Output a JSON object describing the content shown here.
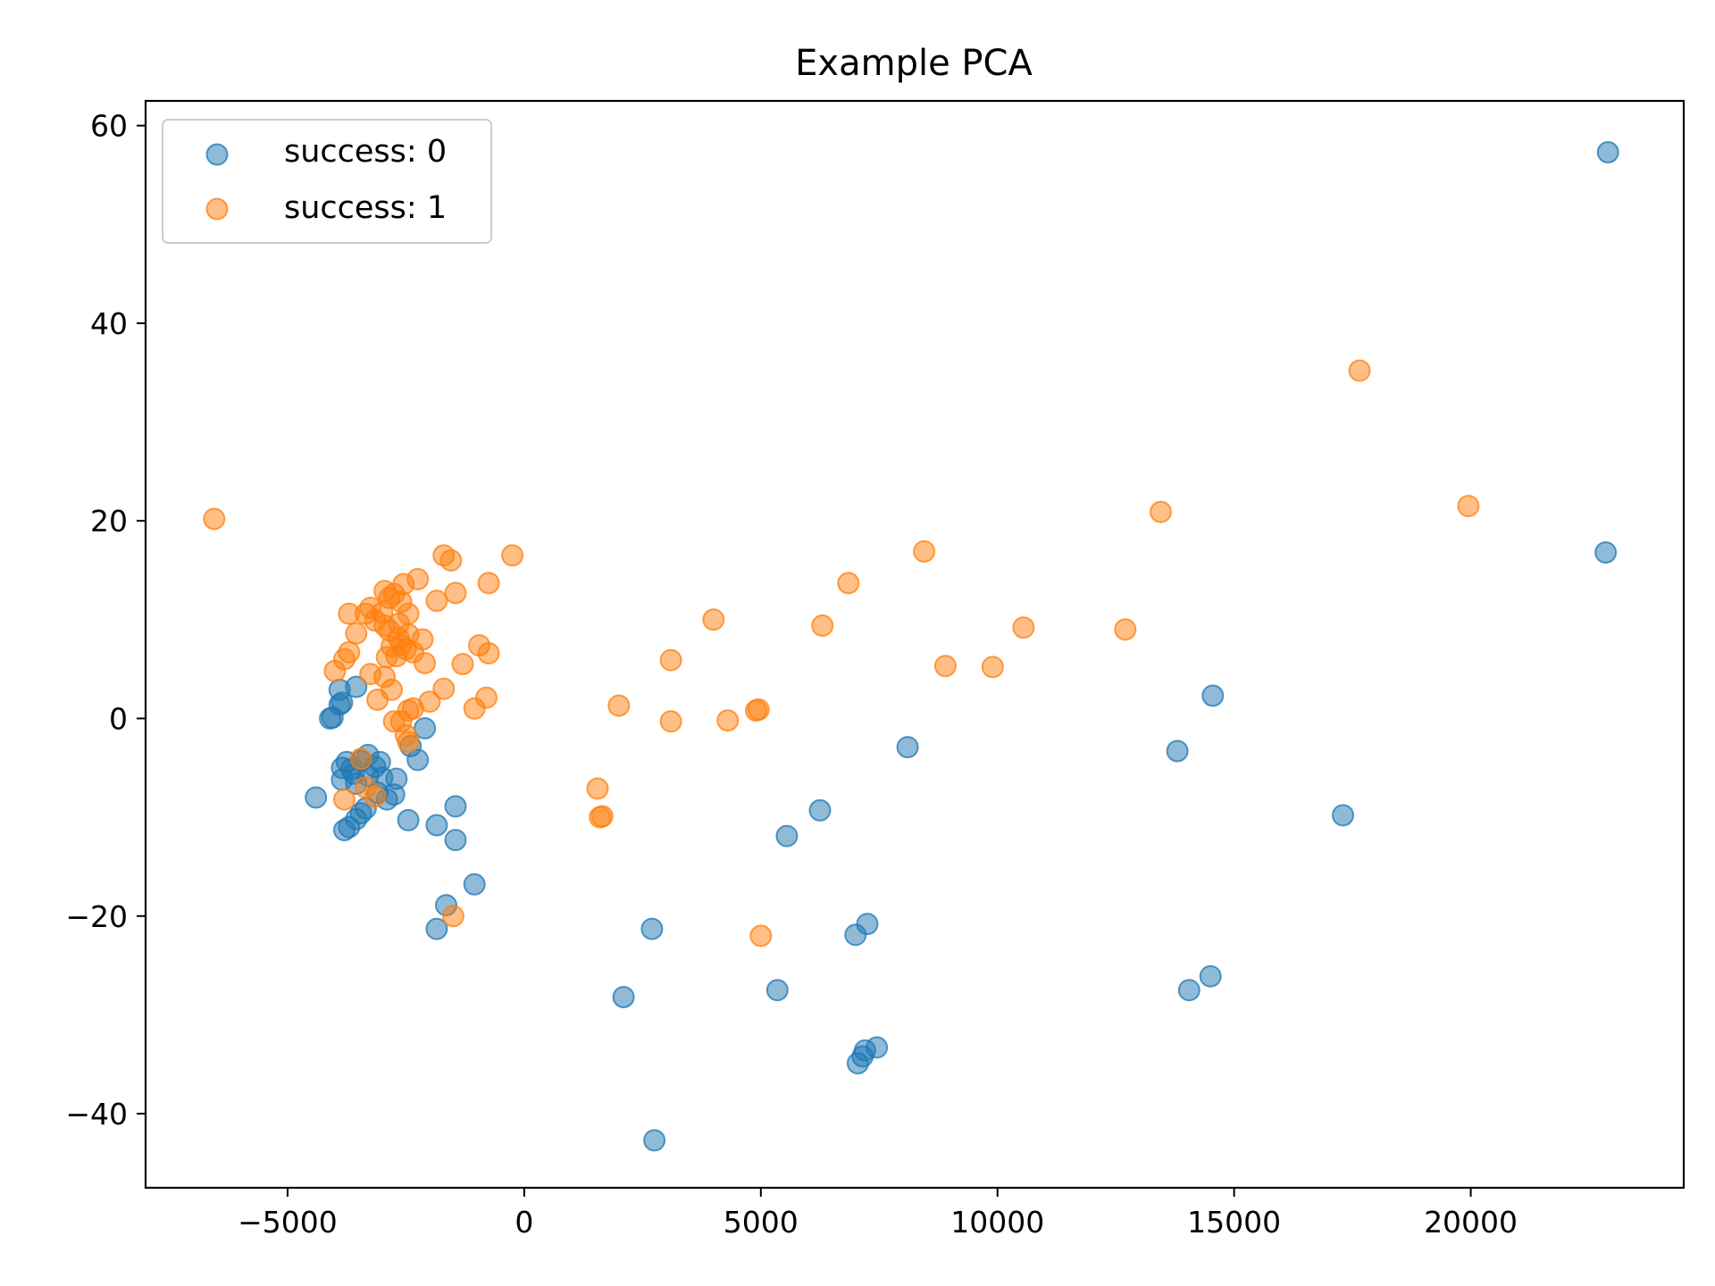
{
  "chart_data": {
    "type": "scatter",
    "title": "Example PCA",
    "xlabel": "",
    "ylabel": "",
    "xlim": [
      -8000,
      24500
    ],
    "ylim": [
      -47.5,
      62.5
    ],
    "x_ticks": [
      -5000,
      0,
      5000,
      10000,
      15000,
      20000
    ],
    "x_tick_labels": [
      "−5000",
      "0",
      "5000",
      "10000",
      "15000",
      "20000"
    ],
    "y_ticks": [
      -40,
      -20,
      0,
      20,
      40,
      60
    ],
    "y_tick_labels": [
      "−40",
      "−20",
      "0",
      "20",
      "40",
      "60"
    ],
    "grid": false,
    "legend_position": "upper-left",
    "marker_alpha": 0.5,
    "series": [
      {
        "name": "success: 0",
        "color": "#1f77b4",
        "points": [
          [
            22900,
            57.3
          ],
          [
            22850,
            16.8
          ],
          [
            14550,
            2.3
          ],
          [
            13800,
            -3.3
          ],
          [
            17300,
            -9.8
          ],
          [
            14050,
            -27.5
          ],
          [
            14500,
            -26.1
          ],
          [
            8100,
            -2.9
          ],
          [
            7250,
            -20.8
          ],
          [
            7000,
            -21.9
          ],
          [
            7450,
            -33.3
          ],
          [
            7200,
            -33.6
          ],
          [
            7150,
            -34.2
          ],
          [
            7050,
            -34.9
          ],
          [
            6250,
            -9.3
          ],
          [
            5550,
            -11.9
          ],
          [
            5350,
            -27.5
          ],
          [
            2700,
            -21.3
          ],
          [
            2100,
            -28.2
          ],
          [
            2750,
            -42.7
          ],
          [
            -4100,
            0.0
          ],
          [
            -4050,
            0.1
          ],
          [
            -3900,
            1.4
          ],
          [
            -3850,
            1.6
          ],
          [
            -3900,
            2.9
          ],
          [
            -3550,
            3.2
          ],
          [
            -2100,
            -1.0
          ],
          [
            -2400,
            -2.8
          ],
          [
            -2250,
            -4.2
          ],
          [
            -3850,
            -5.0
          ],
          [
            -3750,
            -4.4
          ],
          [
            -3600,
            -5.6
          ],
          [
            -3450,
            -4.3
          ],
          [
            -3300,
            -3.7
          ],
          [
            -3150,
            -4.9
          ],
          [
            -3050,
            -4.4
          ],
          [
            -3850,
            -6.2
          ],
          [
            -3550,
            -6.6
          ],
          [
            -3300,
            -5.8
          ],
          [
            -3000,
            -6.0
          ],
          [
            -2700,
            -6.1
          ],
          [
            -3100,
            -7.5
          ],
          [
            -2900,
            -8.2
          ],
          [
            -2750,
            -7.7
          ],
          [
            -3350,
            -9.1
          ],
          [
            -3450,
            -9.6
          ],
          [
            -3550,
            -10.2
          ],
          [
            -3700,
            -11.0
          ],
          [
            -3800,
            -11.3
          ],
          [
            -4400,
            -8.0
          ],
          [
            -2450,
            -10.3
          ],
          [
            -1850,
            -10.8
          ],
          [
            -1450,
            -8.9
          ],
          [
            -1450,
            -12.3
          ],
          [
            -1050,
            -16.8
          ],
          [
            -1650,
            -18.9
          ],
          [
            -1850,
            -21.3
          ],
          [
            -3650,
            -5.1
          ]
        ]
      },
      {
        "name": "success: 1",
        "color": "#ff7f0e",
        "points": [
          [
            -6550,
            20.2
          ],
          [
            17650,
            35.2
          ],
          [
            19950,
            21.5
          ],
          [
            13450,
            20.9
          ],
          [
            12700,
            9.0
          ],
          [
            10550,
            9.2
          ],
          [
            9900,
            5.2
          ],
          [
            8900,
            5.3
          ],
          [
            8450,
            16.9
          ],
          [
            6850,
            13.7
          ],
          [
            6300,
            9.4
          ],
          [
            4000,
            10.0
          ],
          [
            3100,
            5.9
          ],
          [
            3100,
            -0.3
          ],
          [
            4300,
            -0.2
          ],
          [
            4900,
            0.8
          ],
          [
            4950,
            0.9
          ],
          [
            2000,
            1.3
          ],
          [
            1550,
            -7.1
          ],
          [
            1650,
            -9.9
          ],
          [
            1600,
            -10.0
          ],
          [
            5000,
            -22.0
          ],
          [
            -250,
            16.5
          ],
          [
            -750,
            13.7
          ],
          [
            -750,
            6.6
          ],
          [
            -950,
            7.4
          ],
          [
            -800,
            2.1
          ],
          [
            -1050,
            1.0
          ],
          [
            -1300,
            5.5
          ],
          [
            -1450,
            12.7
          ],
          [
            -1550,
            16.0
          ],
          [
            -1700,
            16.5
          ],
          [
            -1700,
            3.0
          ],
          [
            -1850,
            11.9
          ],
          [
            -2000,
            1.7
          ],
          [
            -2100,
            5.6
          ],
          [
            -2150,
            8.0
          ],
          [
            -2250,
            14.1
          ],
          [
            -2450,
            10.6
          ],
          [
            -2550,
            13.6
          ],
          [
            -2350,
            6.7
          ],
          [
            -2450,
            8.5
          ],
          [
            -2600,
            11.8
          ],
          [
            -2650,
            9.6
          ],
          [
            -2750,
            12.6
          ],
          [
            -2850,
            12.2
          ],
          [
            -2950,
            12.9
          ],
          [
            -3000,
            10.7
          ],
          [
            -3150,
            9.9
          ],
          [
            -3250,
            11.2
          ],
          [
            -3350,
            10.6
          ],
          [
            -3700,
            10.6
          ],
          [
            -3550,
            8.6
          ],
          [
            -2800,
            7.3
          ],
          [
            -2600,
            7.4
          ],
          [
            -2500,
            7.0
          ],
          [
            -2700,
            6.3
          ],
          [
            -2900,
            6.2
          ],
          [
            -3700,
            6.7
          ],
          [
            -3800,
            6.0
          ],
          [
            -4000,
            4.8
          ],
          [
            -3250,
            4.5
          ],
          [
            -2950,
            4.2
          ],
          [
            -2800,
            2.9
          ],
          [
            -3100,
            1.9
          ],
          [
            -2450,
            0.8
          ],
          [
            -2350,
            1.0
          ],
          [
            -2600,
            -0.3
          ],
          [
            -2750,
            -0.3
          ],
          [
            -2500,
            -1.7
          ],
          [
            -2450,
            -2.4
          ],
          [
            -3450,
            -4.1
          ],
          [
            -3350,
            -7.0
          ],
          [
            -3150,
            -7.9
          ],
          [
            -3800,
            -8.2
          ],
          [
            -1500,
            -20.0
          ],
          [
            -2950,
            9.4
          ],
          [
            -2850,
            8.9
          ],
          [
            -2650,
            8.1
          ]
        ]
      }
    ]
  }
}
